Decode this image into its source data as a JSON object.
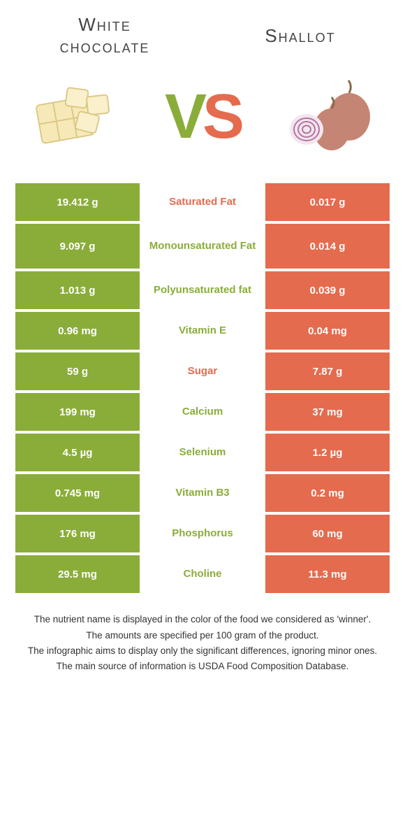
{
  "colors": {
    "left_food": "#8aad3a",
    "right_food": "#e56b4e",
    "background": "#ffffff",
    "text": "#333333",
    "header_text": "#444444"
  },
  "header": {
    "left_title": "White chocolate",
    "right_title": "Shallot",
    "vs_v": "V",
    "vs_s": "S"
  },
  "images": {
    "left_alt": "white-chocolate-image",
    "right_alt": "shallot-image"
  },
  "table": {
    "rows": [
      {
        "left": "19.412 g",
        "label": "Saturated Fat",
        "right": "0.017 g",
        "winner": "right",
        "tall": false
      },
      {
        "left": "9.097 g",
        "label": "Monounsaturated Fat",
        "right": "0.014 g",
        "winner": "left",
        "tall": true
      },
      {
        "left": "1.013 g",
        "label": "Polyunsaturated fat",
        "right": "0.039 g",
        "winner": "left",
        "tall": false
      },
      {
        "left": "0.96 mg",
        "label": "Vitamin E",
        "right": "0.04 mg",
        "winner": "left",
        "tall": false
      },
      {
        "left": "59 g",
        "label": "Sugar",
        "right": "7.87 g",
        "winner": "right",
        "tall": false
      },
      {
        "left": "199 mg",
        "label": "Calcium",
        "right": "37 mg",
        "winner": "left",
        "tall": false
      },
      {
        "left": "4.5 µg",
        "label": "Selenium",
        "right": "1.2 µg",
        "winner": "left",
        "tall": false
      },
      {
        "left": "0.745 mg",
        "label": "Vitamin B3",
        "right": "0.2 mg",
        "winner": "left",
        "tall": false
      },
      {
        "left": "176 mg",
        "label": "Phosphorus",
        "right": "60 mg",
        "winner": "left",
        "tall": false
      },
      {
        "left": "29.5 mg",
        "label": "Choline",
        "right": "11.3 mg",
        "winner": "left",
        "tall": false
      }
    ]
  },
  "notes": {
    "line1": "The nutrient name is displayed in the color of the food we considered as 'winner'.",
    "line2": "The amounts are specified per 100 gram of the product.",
    "line3": "The infographic aims to display only the significant differences, ignoring minor ones.",
    "line4": "The main source of information is USDA Food Composition Database."
  }
}
